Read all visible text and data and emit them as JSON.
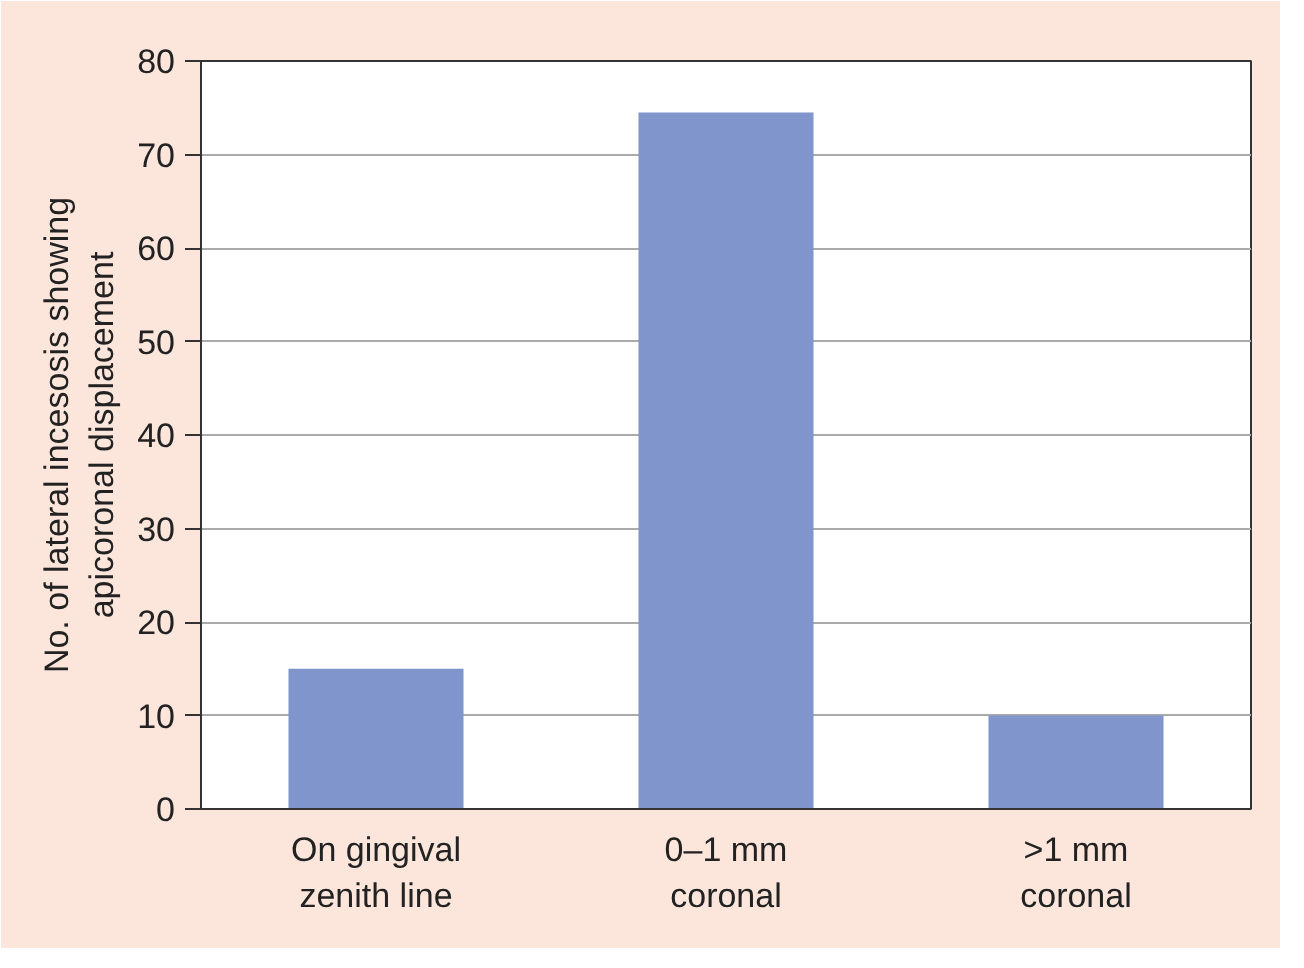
{
  "chart_data": {
    "type": "bar",
    "ylabel": "No. of lateral incesosis showing\napicoronal displacement",
    "categories": [
      "On gingival\nzenith line",
      "0–1 mm\ncoronal",
      ">1 mm\ncoronal"
    ],
    "values": [
      15,
      74.5,
      10
    ],
    "color": "#7f95cc",
    "ylim": [
      0,
      80
    ],
    "yticks": [
      0,
      10,
      20,
      30,
      40,
      50,
      60,
      70,
      80
    ],
    "grid": "y"
  }
}
